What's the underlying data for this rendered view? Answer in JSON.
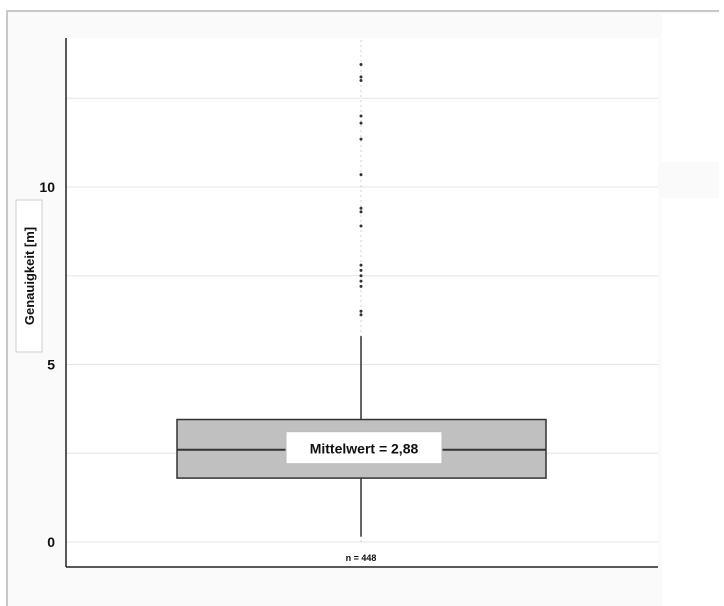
{
  "chart_data": {
    "type": "boxplot",
    "ylabel": "Genauigkeit [m]",
    "ylim": [
      0,
      14
    ],
    "yticks": [
      0,
      5,
      10
    ],
    "grid": true,
    "box": {
      "whisker_low": 0.15,
      "q1": 1.8,
      "median": 2.6,
      "q3": 3.45,
      "whisker_high": 5.8,
      "outliers": [
        6.4,
        6.5,
        7.2,
        7.35,
        7.5,
        7.65,
        7.8,
        8.9,
        9.3,
        9.4,
        10.35,
        11.35,
        11.8,
        12.0,
        13.0,
        13.1,
        13.45
      ]
    },
    "annotation": "Mittelwert = 2,88",
    "n_label": "n = 448"
  },
  "colors": {
    "box_fill": "#c0c0c0",
    "axis": "#222222",
    "grid": "#e6e6e6"
  }
}
